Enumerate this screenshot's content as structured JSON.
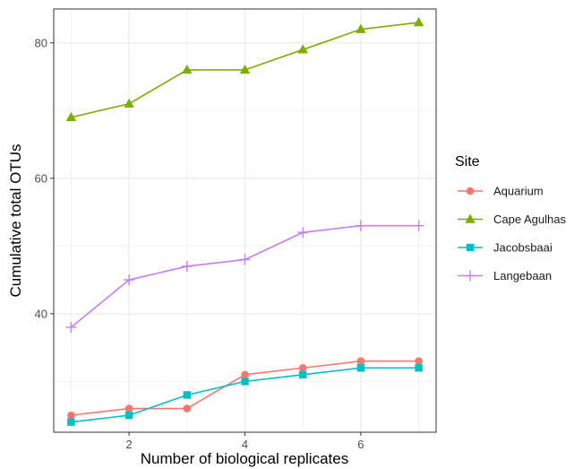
{
  "chart_data": {
    "type": "line",
    "xlabel": "Number of biological replicates",
    "ylabel": "Cumulative total OTUs",
    "xlim": [
      0.7,
      7.3
    ],
    "ylim": [
      22.5,
      85
    ],
    "x_ticks": [
      2,
      4,
      6
    ],
    "y_ticks": [
      40,
      60,
      80
    ],
    "x_tick_labels": [
      "2",
      "4",
      "6"
    ],
    "y_tick_labels": [
      "40",
      "60",
      "80"
    ],
    "grid": true,
    "legend_position": "right",
    "legend_title": "Site",
    "x": [
      1,
      2,
      3,
      4,
      5,
      6,
      7
    ],
    "series": [
      {
        "name": "Aquarium",
        "color": "#F8766D",
        "marker": "circle",
        "values": [
          25,
          26,
          26,
          31,
          32,
          33,
          33
        ]
      },
      {
        "name": "Cape Agulhas",
        "color": "#7CAE00",
        "marker": "triangle",
        "values": [
          69,
          71,
          76,
          76,
          79,
          82,
          83
        ]
      },
      {
        "name": "Jacobsbaai",
        "color": "#00BFC4",
        "marker": "square",
        "values": [
          24,
          25,
          28,
          30,
          31,
          32,
          32
        ]
      },
      {
        "name": "Langebaan",
        "color": "#C77CFF",
        "marker": "plus",
        "values": [
          38,
          45,
          47,
          48,
          52,
          53,
          53
        ]
      }
    ]
  }
}
